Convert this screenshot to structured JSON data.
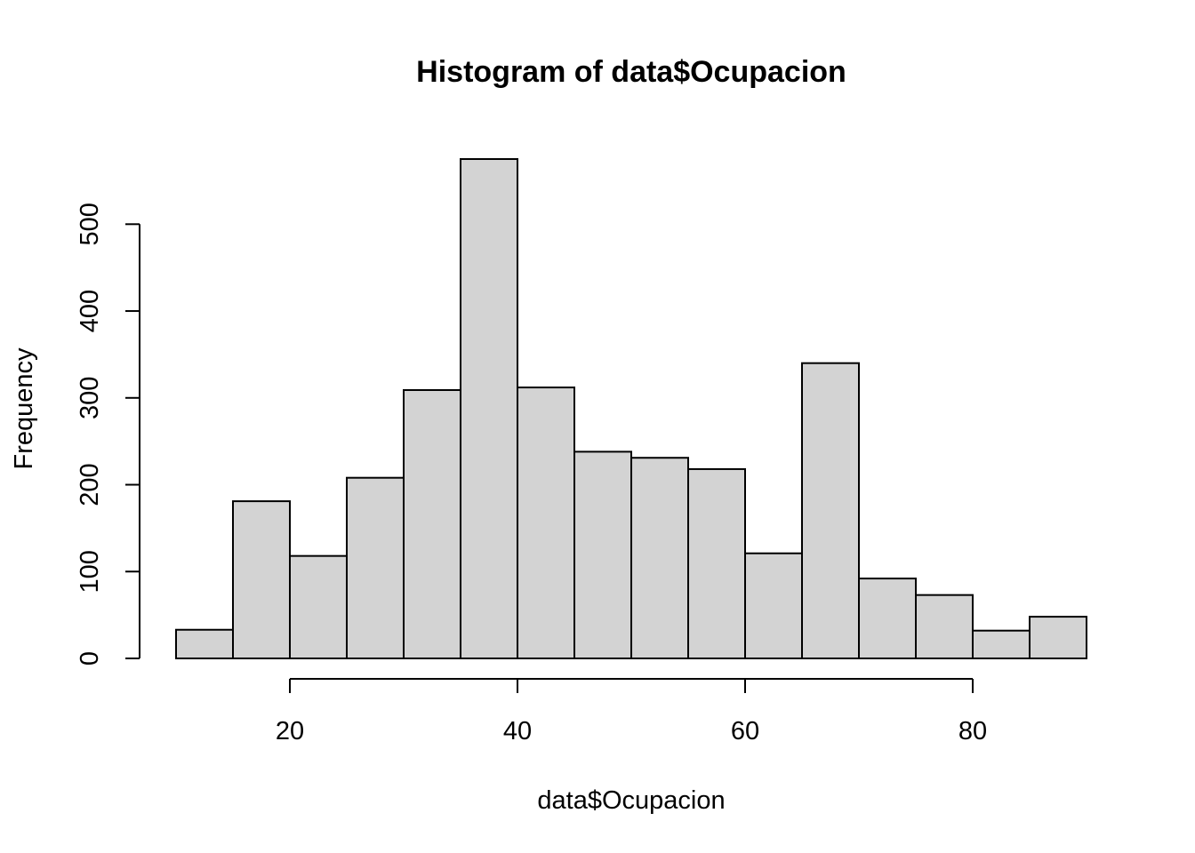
{
  "chart_data": {
    "type": "bar",
    "title": "Histogram of data$Ocupacion",
    "xlabel": "data$Ocupacion",
    "ylabel": "Frequency",
    "bin_edges": [
      10,
      15,
      20,
      25,
      30,
      35,
      40,
      45,
      50,
      55,
      60,
      65,
      70,
      75,
      80,
      85,
      90
    ],
    "values": [
      33,
      181,
      118,
      208,
      309,
      575,
      312,
      238,
      231,
      218,
      121,
      340,
      92,
      73,
      32,
      48
    ],
    "x_ticks": [
      20,
      40,
      60,
      80
    ],
    "y_ticks": [
      0,
      100,
      200,
      300,
      400,
      500
    ],
    "xlim": [
      10,
      90
    ],
    "ylim": [
      0,
      575
    ],
    "grid": false,
    "colors": {
      "bar_fill": "#d3d3d3",
      "bar_stroke": "#000000"
    }
  }
}
